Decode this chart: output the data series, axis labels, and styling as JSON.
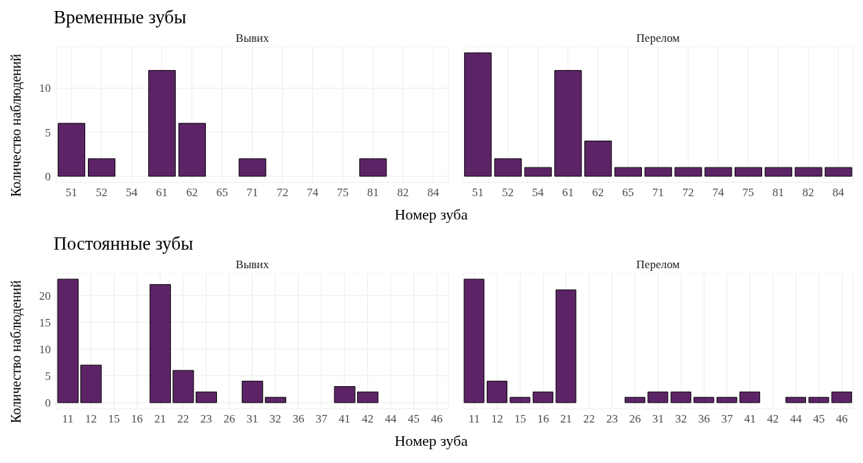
{
  "chart_data": [
    {
      "type": "bar",
      "title": "Временные зубы",
      "subtitle": "Вывих",
      "xlabel": "Номер зуба",
      "ylabel": "Количество наблюдений",
      "categories": [
        "51",
        "52",
        "54",
        "61",
        "62",
        "65",
        "71",
        "72",
        "74",
        "75",
        "81",
        "82",
        "84"
      ],
      "values": [
        6,
        2,
        0,
        12,
        6,
        0,
        2,
        0,
        0,
        0,
        2,
        0,
        0
      ],
      "color": "#5c2466",
      "ylim": [
        -0.7,
        14.7
      ],
      "yticks": [
        0,
        5,
        10
      ],
      "grid": true
    },
    {
      "type": "bar",
      "subtitle": "Перелом",
      "categories": [
        "51",
        "52",
        "54",
        "61",
        "62",
        "65",
        "71",
        "72",
        "74",
        "75",
        "81",
        "82",
        "84"
      ],
      "values": [
        14,
        2,
        1,
        12,
        4,
        1,
        1,
        1,
        1,
        1,
        1,
        1,
        1
      ],
      "color": "#5c2466",
      "ylim": [
        -0.7,
        14.7
      ],
      "yticks": [
        0,
        5,
        10
      ],
      "grid": true,
      "tick_labels": "x"
    },
    {
      "type": "bar",
      "title": "Постоянные зубы",
      "subtitle": "Вывих",
      "xlabel": "Номер зуба",
      "ylabel": "Количество наблюдений",
      "categories": [
        "11",
        "12",
        "15",
        "16",
        "21",
        "22",
        "23",
        "26",
        "31",
        "32",
        "36",
        "37",
        "41",
        "42",
        "44",
        "45",
        "46"
      ],
      "values": [
        23,
        7,
        0,
        0,
        22,
        6,
        2,
        0,
        4,
        1,
        0,
        0,
        3,
        2,
        0,
        0,
        0
      ],
      "color": "#5c2466",
      "ylim": [
        -1.15,
        24.15
      ],
      "yticks": [
        0,
        5,
        10,
        15,
        20
      ],
      "grid": true
    },
    {
      "type": "bar",
      "subtitle": "Перелом",
      "categories": [
        "11",
        "12",
        "15",
        "16",
        "21",
        "22",
        "23",
        "26",
        "31",
        "32",
        "36",
        "37",
        "41",
        "42",
        "44",
        "45",
        "46"
      ],
      "values": [
        23,
        4,
        1,
        2,
        21,
        0,
        0,
        1,
        2,
        2,
        1,
        1,
        2,
        0,
        1,
        1,
        2
      ],
      "color": "#5c2466",
      "ylim": [
        -1.15,
        24.15
      ],
      "yticks": [
        0,
        5,
        10,
        15,
        20
      ],
      "grid": true,
      "tick_labels": "x"
    }
  ]
}
